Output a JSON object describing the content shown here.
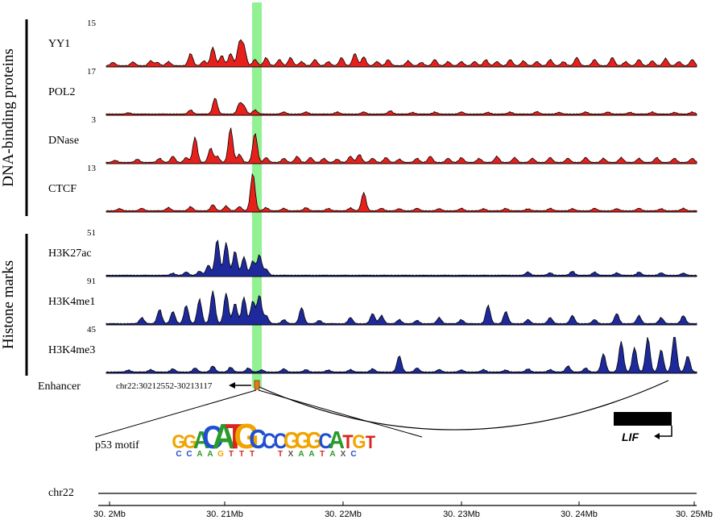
{
  "groups": [
    {
      "label": "DNA-binding proteins"
    },
    {
      "label": "Histone marks"
    }
  ],
  "tracks": [
    {
      "name": "YY1",
      "max": "15",
      "color": "#e8201c",
      "peaks": [
        [
          0.015,
          0.08
        ],
        [
          0.06,
          0.09
        ],
        [
          0.1,
          0.12
        ],
        [
          0.115,
          0.08
        ],
        [
          0.14,
          0.1
        ],
        [
          0.19,
          0.3
        ],
        [
          0.22,
          0.12
        ],
        [
          0.24,
          0.45
        ],
        [
          0.26,
          0.25
        ],
        [
          0.28,
          0.3
        ],
        [
          0.3,
          0.55
        ],
        [
          0.31,
          0.45
        ],
        [
          0.335,
          0.15
        ],
        [
          0.36,
          0.2
        ],
        [
          0.39,
          0.15
        ],
        [
          0.415,
          0.2
        ],
        [
          0.44,
          0.1
        ],
        [
          0.47,
          0.15
        ],
        [
          0.5,
          0.1
        ],
        [
          0.53,
          0.2
        ],
        [
          0.56,
          0.3
        ],
        [
          0.58,
          0.22
        ],
        [
          0.61,
          0.1
        ],
        [
          0.635,
          0.15
        ],
        [
          0.68,
          0.12
        ],
        [
          0.71,
          0.08
        ],
        [
          0.74,
          0.15
        ],
        [
          0.77,
          0.1
        ],
        [
          0.8,
          0.1
        ],
        [
          0.83,
          0.1
        ],
        [
          0.855,
          0.15
        ],
        [
          0.88,
          0.1
        ],
        [
          0.91,
          0.15
        ],
        [
          0.94,
          0.12
        ],
        [
          0.97,
          0.1
        ],
        [
          1.0,
          0.15
        ],
        [
          1.03,
          0.1
        ],
        [
          1.06,
          0.2
        ],
        [
          1.1,
          0.15
        ],
        [
          1.14,
          0.2
        ],
        [
          1.17,
          0.1
        ],
        [
          1.2,
          0.15
        ],
        [
          1.23,
          0.12
        ],
        [
          1.26,
          0.18
        ],
        [
          1.29,
          0.1
        ],
        [
          1.32,
          0.15
        ]
      ]
    },
    {
      "name": "POL2",
      "max": "17",
      "color": "#e8201c",
      "peaks": [
        [
          0.05,
          0.03
        ],
        [
          0.19,
          0.1
        ],
        [
          0.245,
          0.4
        ],
        [
          0.3,
          0.25
        ],
        [
          0.31,
          0.18
        ],
        [
          0.335,
          0.1
        ],
        [
          0.4,
          0.05
        ],
        [
          0.45,
          0.05
        ],
        [
          0.52,
          0.05
        ],
        [
          0.58,
          0.05
        ],
        [
          0.64,
          0.08
        ],
        [
          0.69,
          0.04
        ],
        [
          0.74,
          0.05
        ],
        [
          0.8,
          0.05
        ],
        [
          0.86,
          0.04
        ],
        [
          0.91,
          0.05
        ],
        [
          0.97,
          0.06
        ],
        [
          1.02,
          0.04
        ],
        [
          1.08,
          0.05
        ],
        [
          1.13,
          0.05
        ],
        [
          1.18,
          0.04
        ],
        [
          1.23,
          0.05
        ],
        [
          1.28,
          0.04
        ],
        [
          1.32,
          0.05
        ]
      ]
    },
    {
      "name": "DNase",
      "max": "3",
      "color": "#e8201c",
      "peaks": [
        [
          0.02,
          0.05
        ],
        [
          0.07,
          0.08
        ],
        [
          0.12,
          0.1
        ],
        [
          0.15,
          0.15
        ],
        [
          0.18,
          0.12
        ],
        [
          0.2,
          0.62
        ],
        [
          0.235,
          0.35
        ],
        [
          0.25,
          0.15
        ],
        [
          0.28,
          0.85
        ],
        [
          0.3,
          0.2
        ],
        [
          0.335,
          0.72
        ],
        [
          0.36,
          0.12
        ],
        [
          0.4,
          0.1
        ],
        [
          0.43,
          0.15
        ],
        [
          0.46,
          0.12
        ],
        [
          0.49,
          0.1
        ],
        [
          0.52,
          0.08
        ],
        [
          0.55,
          0.15
        ],
        [
          0.57,
          0.2
        ],
        [
          0.6,
          0.1
        ],
        [
          0.63,
          0.12
        ],
        [
          0.66,
          0.08
        ],
        [
          0.7,
          0.1
        ],
        [
          0.73,
          0.15
        ],
        [
          0.77,
          0.1
        ],
        [
          0.8,
          0.12
        ],
        [
          0.84,
          0.1
        ],
        [
          0.88,
          0.15
        ],
        [
          0.92,
          0.12
        ],
        [
          0.96,
          0.1
        ],
        [
          1.0,
          0.12
        ],
        [
          1.04,
          0.1
        ],
        [
          1.08,
          0.12
        ],
        [
          1.12,
          0.1
        ],
        [
          1.16,
          0.12
        ],
        [
          1.2,
          0.1
        ],
        [
          1.24,
          0.12
        ],
        [
          1.28,
          0.1
        ],
        [
          1.32,
          0.1
        ]
      ]
    },
    {
      "name": "CTCF",
      "max": "13",
      "color": "#e8201c",
      "peaks": [
        [
          0.03,
          0.05
        ],
        [
          0.08,
          0.06
        ],
        [
          0.14,
          0.08
        ],
        [
          0.19,
          0.1
        ],
        [
          0.24,
          0.15
        ],
        [
          0.27,
          0.12
        ],
        [
          0.3,
          0.1
        ],
        [
          0.33,
          0.92
        ],
        [
          0.36,
          0.08
        ],
        [
          0.4,
          0.06
        ],
        [
          0.45,
          0.08
        ],
        [
          0.5,
          0.06
        ],
        [
          0.55,
          0.07
        ],
        [
          0.58,
          0.45
        ],
        [
          0.62,
          0.06
        ],
        [
          0.66,
          0.05
        ],
        [
          0.7,
          0.06
        ],
        [
          0.75,
          0.05
        ],
        [
          0.8,
          0.06
        ],
        [
          0.85,
          0.05
        ],
        [
          0.9,
          0.06
        ],
        [
          0.95,
          0.05
        ],
        [
          1.0,
          0.06
        ],
        [
          1.05,
          0.05
        ],
        [
          1.1,
          0.06
        ],
        [
          1.15,
          0.05
        ],
        [
          1.2,
          0.06
        ],
        [
          1.25,
          0.05
        ],
        [
          1.3,
          0.06
        ]
      ]
    },
    {
      "name": "H3K27ac",
      "max": "51",
      "color": "#1e2a9b",
      "peaks": [
        [
          0.15,
          0.05
        ],
        [
          0.18,
          0.08
        ],
        [
          0.21,
          0.1
        ],
        [
          0.23,
          0.25
        ],
        [
          0.25,
          0.88
        ],
        [
          0.27,
          0.8
        ],
        [
          0.29,
          0.6
        ],
        [
          0.31,
          0.45
        ],
        [
          0.33,
          0.35
        ],
        [
          0.345,
          0.5
        ],
        [
          0.36,
          0.15
        ],
        [
          0.95,
          0.08
        ],
        [
          1.0,
          0.06
        ],
        [
          1.05,
          0.1
        ],
        [
          1.1,
          0.08
        ],
        [
          1.15,
          0.06
        ],
        [
          1.2,
          0.08
        ],
        [
          1.25,
          0.06
        ],
        [
          1.3,
          0.05
        ]
      ]
    },
    {
      "name": "H3K4me1",
      "max": "91",
      "color": "#1e2a9b",
      "peaks": [
        [
          0.08,
          0.15
        ],
        [
          0.12,
          0.35
        ],
        [
          0.15,
          0.3
        ],
        [
          0.18,
          0.45
        ],
        [
          0.21,
          0.6
        ],
        [
          0.24,
          0.8
        ],
        [
          0.27,
          0.75
        ],
        [
          0.29,
          0.5
        ],
        [
          0.31,
          0.65
        ],
        [
          0.33,
          0.55
        ],
        [
          0.345,
          0.7
        ],
        [
          0.36,
          0.2
        ],
        [
          0.4,
          0.1
        ],
        [
          0.44,
          0.4
        ],
        [
          0.48,
          0.08
        ],
        [
          0.55,
          0.15
        ],
        [
          0.6,
          0.25
        ],
        [
          0.62,
          0.2
        ],
        [
          0.66,
          0.1
        ],
        [
          0.7,
          0.08
        ],
        [
          0.75,
          0.15
        ],
        [
          0.8,
          0.1
        ],
        [
          0.86,
          0.45
        ],
        [
          0.9,
          0.3
        ],
        [
          0.95,
          0.1
        ],
        [
          1.0,
          0.15
        ],
        [
          1.05,
          0.2
        ],
        [
          1.1,
          0.1
        ],
        [
          1.15,
          0.25
        ],
        [
          1.2,
          0.2
        ],
        [
          1.25,
          0.15
        ],
        [
          1.3,
          0.2
        ]
      ]
    },
    {
      "name": "H3K4me3",
      "max": "45",
      "color": "#1e2a9b",
      "peaks": [
        [
          0.05,
          0.05
        ],
        [
          0.1,
          0.06
        ],
        [
          0.15,
          0.08
        ],
        [
          0.2,
          0.1
        ],
        [
          0.24,
          0.15
        ],
        [
          0.28,
          0.12
        ],
        [
          0.32,
          0.1
        ],
        [
          0.35,
          0.05
        ],
        [
          0.4,
          0.08
        ],
        [
          0.45,
          0.06
        ],
        [
          0.5,
          0.05
        ],
        [
          0.55,
          0.06
        ],
        [
          0.6,
          0.08
        ],
        [
          0.66,
          0.4
        ],
        [
          0.7,
          0.1
        ],
        [
          0.75,
          0.06
        ],
        [
          0.8,
          0.05
        ],
        [
          0.85,
          0.06
        ],
        [
          0.9,
          0.05
        ],
        [
          0.95,
          0.08
        ],
        [
          1.0,
          0.06
        ],
        [
          1.04,
          0.15
        ],
        [
          1.08,
          0.1
        ],
        [
          1.12,
          0.45
        ],
        [
          1.16,
          0.75
        ],
        [
          1.19,
          0.6
        ],
        [
          1.22,
          0.85
        ],
        [
          1.25,
          0.55
        ],
        [
          1.28,
          0.9
        ],
        [
          1.31,
          0.4
        ]
      ]
    }
  ],
  "enhancer": {
    "label": "Enhancer",
    "coords": "chr22:30212552-30213117"
  },
  "motif": {
    "label": "p53 motif",
    "top": "GGACATGCCCGGGCATGT",
    "bottom": "CCAAGTTTTXAATAXC"
  },
  "gene": {
    "label": "LIF"
  },
  "axis": {
    "chrom": "chr22",
    "ticks": [
      "30. 2Mb",
      "30. 21Mb",
      "30. 22Mb",
      "30. 23Mb",
      "30. 24Mb",
      "30. 25Mb"
    ]
  },
  "colors": {
    "highlight": "#7fee7f",
    "signal_red": "#e8201c",
    "signal_blue": "#1e2a9b",
    "enhancer_box": "#e07b1f"
  }
}
